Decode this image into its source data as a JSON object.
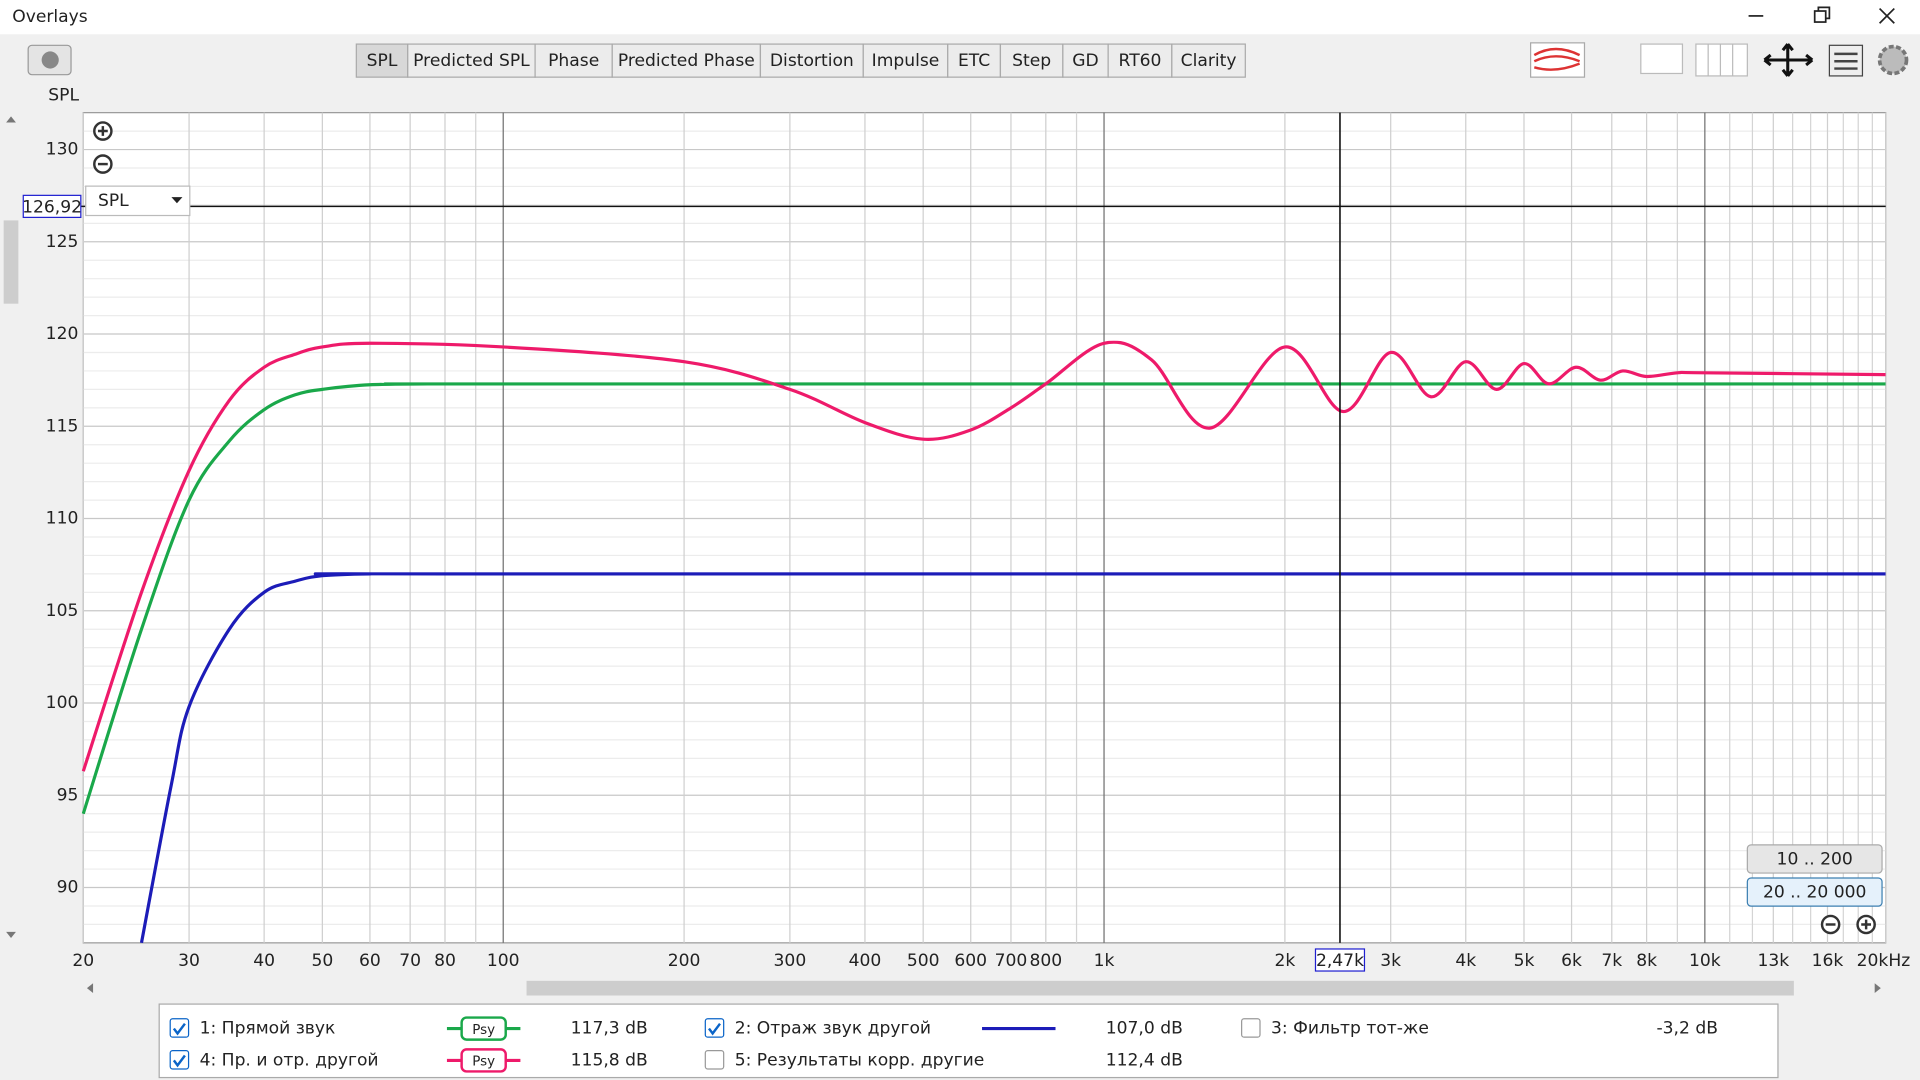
{
  "window": {
    "title": "Overlays"
  },
  "toolbar": {
    "tabs": [
      "SPL",
      "Predicted SPL",
      "Phase",
      "Predicted Phase",
      "Distortion",
      "Impulse",
      "ETC",
      "Step",
      "GD",
      "RT60",
      "Clarity"
    ],
    "selected": 0
  },
  "chart_data": {
    "type": "line",
    "ylabel": "SPL",
    "selector": "SPL",
    "log_x": true,
    "grid": true,
    "xlim": [
      20,
      20000
    ],
    "ylim": [
      87,
      132
    ],
    "xticks": [
      20,
      30,
      40,
      50,
      60,
      70,
      80,
      100,
      200,
      300,
      400,
      500,
      600,
      700,
      800,
      {
        "value": 1000,
        "label": "1k"
      },
      {
        "value": 2000,
        "label": "2k"
      },
      {
        "value": 3000,
        "label": "3k"
      },
      {
        "value": 4000,
        "label": "4k"
      },
      {
        "value": 5000,
        "label": "5k"
      },
      {
        "value": 6000,
        "label": "6k"
      },
      {
        "value": 7000,
        "label": "7k"
      },
      {
        "value": 8000,
        "label": "8k"
      },
      {
        "value": 10000,
        "label": "10k"
      },
      {
        "value": 13000,
        "label": "13k"
      },
      {
        "value": 16000,
        "label": "16k"
      },
      {
        "value": 20000,
        "label": "20kHz"
      }
    ],
    "x_minor_grid": [
      90,
      900,
      9000,
      11000,
      12000,
      14000,
      15000,
      17000,
      18000,
      19000
    ],
    "yticks": [
      90,
      95,
      100,
      105,
      110,
      115,
      120,
      125,
      130
    ],
    "y_minor_grid": [
      88,
      89,
      91,
      92,
      93,
      94,
      96,
      97,
      98,
      99,
      101,
      102,
      103,
      104,
      106,
      107,
      108,
      109,
      111,
      112,
      113,
      114,
      116,
      117,
      118,
      119,
      121,
      122,
      123,
      124,
      126,
      127,
      128,
      129,
      131
    ],
    "cursor_y": {
      "value": 126.92,
      "label": "126,92"
    },
    "cursor_x": {
      "value": 2470,
      "label": "2,47k"
    },
    "series": [
      {
        "name": "1: Прямой звук",
        "color": "#1aa84a",
        "level": "117,3 dB",
        "badge": "Psy",
        "checked": true,
        "x": [
          20,
          25,
          30,
          35,
          40,
          45,
          50,
          60,
          80,
          100,
          20000
        ],
        "values": [
          94,
          104,
          111,
          114.2,
          115.9,
          116.7,
          117,
          117.25,
          117.3,
          117.3,
          117.3
        ]
      },
      {
        "name": "2: Отраж звук другой",
        "color": "#1c1cb8",
        "level": "107,0 dB",
        "checked": true,
        "x": [
          25,
          28,
          30,
          35,
          40,
          45,
          50,
          60,
          80,
          20000
        ],
        "values": [
          87,
          95.5,
          99.8,
          104,
          106,
          106.6,
          106.9,
          107,
          107,
          107
        ]
      },
      {
        "name": "4: Пр. и отр. другой",
        "color": "#ee1a6a",
        "level": "115,8 dB",
        "badge": "Psy",
        "checked": true,
        "x": [
          20,
          25,
          30,
          35,
          40,
          45,
          50,
          60,
          100,
          200,
          300,
          400,
          500,
          600,
          700,
          800,
          1000,
          1200,
          1500,
          2000,
          2500,
          3000,
          3500,
          4000,
          4500,
          5000,
          5500,
          6100,
          6700,
          7300,
          8000,
          9000,
          10000,
          20000
        ],
        "values": [
          96.3,
          106,
          112.6,
          116.4,
          118.2,
          118.9,
          119.3,
          119.5,
          119.3,
          118.5,
          117,
          115.2,
          114.3,
          114.8,
          116,
          117.3,
          119.5,
          118.6,
          114.9,
          119.3,
          115.8,
          119,
          116.6,
          118.5,
          117,
          118.4,
          117.3,
          118.2,
          117.5,
          118,
          117.7,
          117.9,
          117.9,
          117.8
        ]
      }
    ]
  },
  "hidden_series": [
    {
      "name": "3: Фильтр тот-же",
      "color": "#f08a00",
      "level": "-3,2 dB",
      "checked": false
    },
    {
      "name": "5: Результаты корр. другие",
      "color": "#8a7fd6",
      "level": "112,4 dB",
      "checked": false
    }
  ],
  "range_buttons": [
    "10 .. 200",
    "20 .. 20 000"
  ]
}
